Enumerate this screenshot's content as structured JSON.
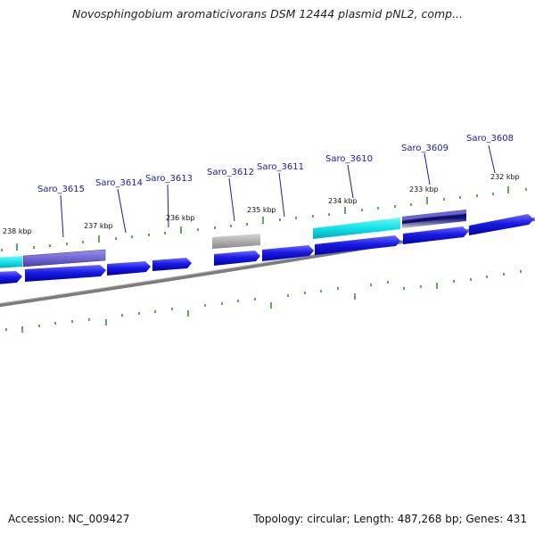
{
  "title": "Novosphingobium aromaticivorans DSM 12444 plasmid pNL2, comp...",
  "footer": {
    "accession": "Accession: NC_009427",
    "topology": "Topology: circular; Length: 487,268 bp; Genes: 431"
  },
  "colors": {
    "cds_forward": "#1010dd",
    "cds_reverse": "#1010dd",
    "cds_highlight_purple": "#7a6fd6",
    "cds_highlight_cyan": "#18e6ea",
    "cds_gray": "#a8a8a8",
    "backbone": "#808080",
    "tick": "#2a8a2a",
    "gene_label": "#1a1aa8"
  },
  "kbp_labels": [
    "238 kbp",
    "237 kbp",
    "236 kbp",
    "235 kbp",
    "234 kbp",
    "233 kbp",
    "232 kbp"
  ],
  "gene_labels": [
    "Saro_3615",
    "Saro_3614",
    "Saro_3613",
    "Saro_3612",
    "Saro_3611",
    "Saro_3610",
    "Saro_3609",
    "Saro_3608"
  ]
}
